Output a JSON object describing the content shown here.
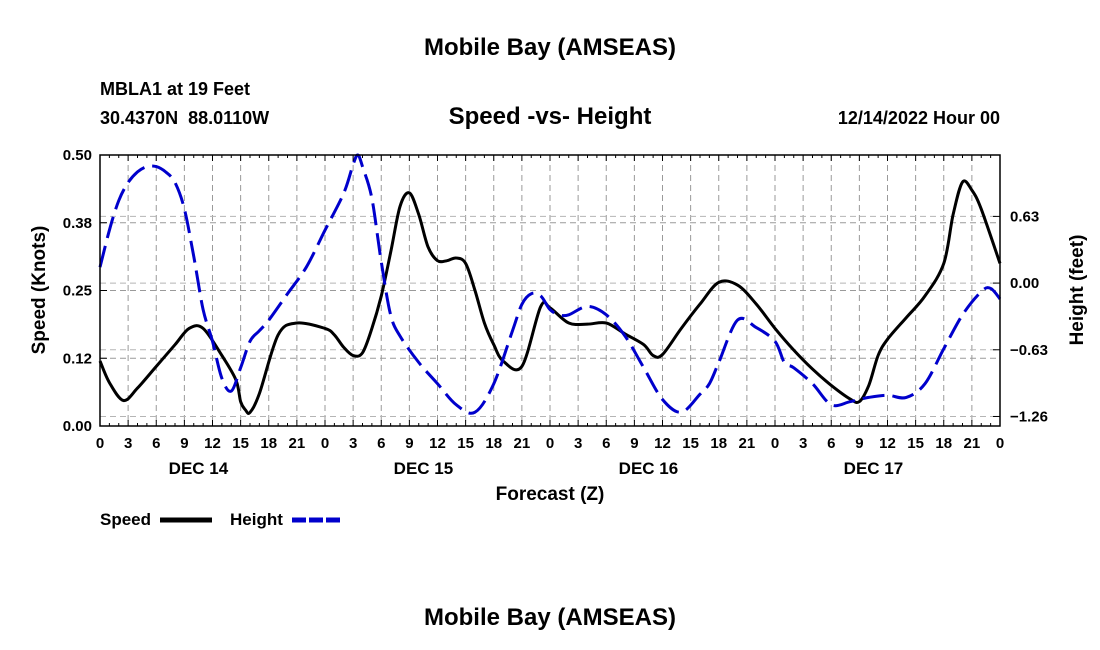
{
  "page": {
    "title": "Mobile Bay (AMSEAS)",
    "repeat_title": "Mobile Bay (AMSEAS)"
  },
  "chart_data": {
    "type": "line",
    "title": "Speed -vs- Height",
    "station": "MBLA1 at 19 Feet",
    "coordinates": "30.4370N  88.0110W",
    "timestamp": "12/14/2022 Hour 00",
    "xlabel": "Forecast (Z)",
    "ylabel_left": "Speed (Knots)",
    "ylabel_right": "Height (feet)",
    "xlim": [
      0,
      96
    ],
    "ylim_left": [
      0,
      0.5
    ],
    "ylim_right": [
      -1.35,
      1.21
    ],
    "x_tick_labels": [
      "0",
      "3",
      "6",
      "9",
      "12",
      "15",
      "18",
      "21",
      "0",
      "3",
      "6",
      "9",
      "12",
      "15",
      "18",
      "21",
      "0",
      "3",
      "6",
      "9",
      "12",
      "15",
      "18",
      "21",
      "0",
      "3",
      "6",
      "9",
      "12",
      "15",
      "18",
      "21",
      "0"
    ],
    "day_labels": [
      {
        "label": "DEC 14",
        "hour": 10.5
      },
      {
        "label": "DEC 15",
        "hour": 34.5
      },
      {
        "label": "DEC 16",
        "hour": 58.5
      },
      {
        "label": "DEC 17",
        "hour": 82.5
      }
    ],
    "left_ticks": [
      {
        "value": 0.0,
        "label": "0.00"
      },
      {
        "value": 0.125,
        "label": "0.12"
      },
      {
        "value": 0.25,
        "label": "0.25"
      },
      {
        "value": 0.375,
        "label": "0.38"
      },
      {
        "value": 0.5,
        "label": "0.50"
      }
    ],
    "right_ticks": [
      {
        "value": 0.63,
        "label": "0.63"
      },
      {
        "value": 0.0,
        "label": "0.00"
      },
      {
        "value": -0.63,
        "label": "−0.63"
      },
      {
        "value": -1.26,
        "label": "−1.26"
      }
    ],
    "grid": true,
    "legend_position": "bottom-left",
    "series": [
      {
        "name": "Speed",
        "axis": "left",
        "color": "#000000",
        "style": "solid",
        "x": [
          0,
          1,
          2.5,
          4,
          6,
          8,
          9.5,
          11,
          13,
          14.5,
          15,
          15.5,
          16,
          17,
          19,
          21,
          24,
          25,
          26,
          27,
          28,
          29,
          30,
          31,
          32,
          33,
          34,
          35,
          36,
          37,
          38,
          39,
          40,
          41,
          42,
          43,
          45,
          47,
          48,
          50,
          52,
          54,
          56,
          58,
          59,
          60,
          62,
          64,
          66,
          68,
          70,
          72,
          74,
          76,
          78,
          80,
          81,
          82,
          83,
          84,
          86,
          88,
          90,
          91,
          92,
          93,
          94,
          96
        ],
        "values": [
          0.12,
          0.08,
          0.047,
          0.07,
          0.11,
          0.15,
          0.18,
          0.18,
          0.13,
          0.085,
          0.045,
          0.03,
          0.025,
          0.06,
          0.168,
          0.19,
          0.18,
          0.168,
          0.145,
          0.13,
          0.135,
          0.18,
          0.24,
          0.32,
          0.405,
          0.43,
          0.39,
          0.33,
          0.305,
          0.305,
          0.31,
          0.3,
          0.25,
          0.19,
          0.15,
          0.12,
          0.11,
          0.22,
          0.218,
          0.19,
          0.188,
          0.19,
          0.17,
          0.15,
          0.13,
          0.132,
          0.18,
          0.225,
          0.265,
          0.26,
          0.225,
          0.18,
          0.14,
          0.105,
          0.075,
          0.05,
          0.045,
          0.075,
          0.13,
          0.16,
          0.2,
          0.24,
          0.3,
          0.39,
          0.45,
          0.435,
          0.4,
          0.3
        ]
      },
      {
        "name": "Height",
        "axis": "right",
        "color": "#0000cc",
        "style": "dashed",
        "x": [
          0,
          1,
          2,
          3,
          4,
          5,
          6,
          7,
          8,
          9,
          10,
          11,
          12,
          13,
          14,
          15,
          16,
          17,
          18,
          20,
          22,
          24,
          26,
          27,
          27.5,
          28,
          29,
          30,
          31,
          32,
          34,
          36,
          38,
          40,
          42,
          44,
          45,
          46,
          47,
          48,
          49,
          50,
          52,
          54,
          56,
          58,
          60,
          62,
          64,
          65,
          66,
          68,
          70,
          72,
          73,
          74,
          76,
          78,
          80,
          82,
          84,
          86,
          88,
          90,
          92,
          94,
          95,
          96
        ],
        "values": [
          0.15,
          0.5,
          0.78,
          0.95,
          1.05,
          1.1,
          1.1,
          1.05,
          0.95,
          0.7,
          0.25,
          -0.25,
          -0.55,
          -0.9,
          -1.02,
          -0.8,
          -0.55,
          -0.45,
          -0.35,
          -0.1,
          0.15,
          0.5,
          0.85,
          1.12,
          1.21,
          1.1,
          0.8,
          0.2,
          -0.3,
          -0.5,
          -0.75,
          -0.95,
          -1.15,
          -1.22,
          -0.95,
          -0.45,
          -0.2,
          -0.1,
          -0.12,
          -0.25,
          -0.3,
          -0.3,
          -0.22,
          -0.3,
          -0.5,
          -0.8,
          -1.1,
          -1.22,
          -1.05,
          -0.95,
          -0.75,
          -0.35,
          -0.42,
          -0.55,
          -0.75,
          -0.8,
          -0.95,
          -1.15,
          -1.12,
          -1.08,
          -1.06,
          -1.08,
          -0.95,
          -0.62,
          -0.3,
          -0.08,
          -0.05,
          -0.15
        ]
      }
    ],
    "legend": [
      {
        "label": "Speed",
        "color": "#000000",
        "style": "solid"
      },
      {
        "label": "Height",
        "color": "#0000cc",
        "style": "dashed"
      }
    ]
  }
}
